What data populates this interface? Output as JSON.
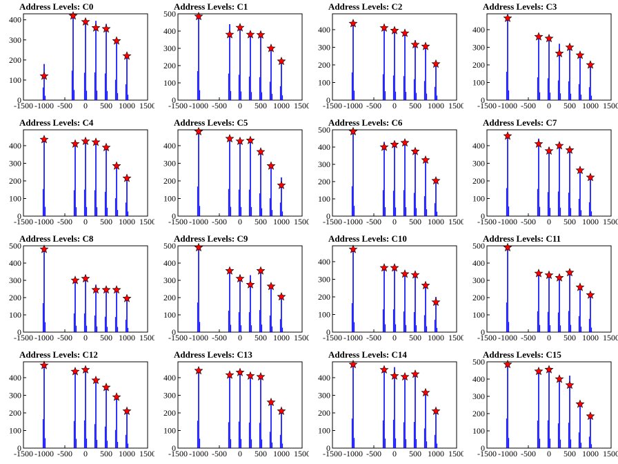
{
  "title_prefix": "Address Levels: ",
  "colors": {
    "histogram": "#0000ff",
    "marker": "#ff0000",
    "marker_edge": "#000000"
  },
  "marker_icon": "star-icon",
  "chart_data": [
    {
      "type": "bar",
      "title": "Address Levels: C0",
      "xlim": [
        -1500,
        1500
      ],
      "xticks": [
        -1500,
        -1000,
        -500,
        0,
        500,
        1000,
        1500
      ],
      "ylim": [
        0,
        430
      ],
      "yticks": [
        0,
        100,
        200,
        300,
        400
      ],
      "peak_x": [
        -1000,
        -300,
        0,
        250,
        500,
        750,
        1000
      ],
      "peak_heights": [
        180,
        420,
        390,
        395,
        380,
        290,
        225
      ],
      "markers_y": [
        120,
        420,
        390,
        360,
        355,
        295,
        220
      ]
    },
    {
      "type": "bar",
      "title": "Address Levels: C1",
      "xlim": [
        -1500,
        1500
      ],
      "xticks": [
        -1500,
        -1000,
        -500,
        0,
        500,
        1000,
        1500
      ],
      "ylim": [
        0,
        500
      ],
      "yticks": [
        0,
        100,
        200,
        300,
        400,
        500
      ],
      "peak_x": [
        -1000,
        -250,
        0,
        250,
        500,
        750,
        1000
      ],
      "peak_heights": [
        480,
        440,
        420,
        390,
        380,
        305,
        230
      ],
      "markers_y": [
        485,
        380,
        420,
        380,
        378,
        300,
        225
      ]
    },
    {
      "type": "bar",
      "title": "Address Levels: C2",
      "xlim": [
        -1500,
        1500
      ],
      "xticks": [
        -1500,
        -1000,
        -500,
        0,
        500,
        1000,
        1500
      ],
      "ylim": [
        0,
        490
      ],
      "yticks": [
        0,
        100,
        200,
        300,
        400
      ],
      "peak_x": [
        -1000,
        -250,
        0,
        250,
        500,
        750,
        1000
      ],
      "peak_heights": [
        450,
        420,
        400,
        390,
        340,
        310,
        215
      ],
      "markers_y": [
        435,
        410,
        395,
        380,
        315,
        305,
        205
      ]
    },
    {
      "type": "bar",
      "title": "Address Levels: C3",
      "xlim": [
        -1500,
        1500
      ],
      "xticks": [
        -1500,
        -1000,
        -500,
        0,
        500,
        1000,
        1500
      ],
      "ylim": [
        0,
        490
      ],
      "yticks": [
        0,
        100,
        200,
        300,
        400
      ],
      "peak_x": [
        -1000,
        -250,
        0,
        250,
        500,
        750,
        1000
      ],
      "peak_heights": [
        460,
        370,
        355,
        320,
        305,
        260,
        210
      ],
      "markers_y": [
        465,
        360,
        350,
        265,
        300,
        255,
        200
      ]
    },
    {
      "type": "bar",
      "title": "Address Levels: C4",
      "xlim": [
        -1500,
        1500
      ],
      "xticks": [
        -1500,
        -1000,
        -500,
        0,
        500,
        1000,
        1500
      ],
      "ylim": [
        0,
        490
      ],
      "yticks": [
        0,
        100,
        200,
        300,
        400
      ],
      "peak_x": [
        -1000,
        -250,
        0,
        250,
        500,
        750,
        1000
      ],
      "peak_heights": [
        440,
        420,
        430,
        420,
        395,
        290,
        220
      ],
      "markers_y": [
        435,
        410,
        425,
        420,
        390,
        285,
        215
      ]
    },
    {
      "type": "bar",
      "title": "Address Levels: C5",
      "xlim": [
        -1500,
        1500
      ],
      "xticks": [
        -1500,
        -1000,
        -500,
        0,
        500,
        1000,
        1500
      ],
      "ylim": [
        0,
        490
      ],
      "yticks": [
        0,
        100,
        200,
        300,
        400
      ],
      "peak_x": [
        -1000,
        -250,
        0,
        250,
        500,
        750,
        1000
      ],
      "peak_heights": [
        480,
        440,
        430,
        430,
        370,
        290,
        220
      ],
      "markers_y": [
        480,
        440,
        425,
        430,
        365,
        285,
        175
      ]
    },
    {
      "type": "bar",
      "title": "Address Levels: C6",
      "xlim": [
        -1500,
        1500
      ],
      "xticks": [
        -1500,
        -1000,
        -500,
        0,
        500,
        1000,
        1500
      ],
      "ylim": [
        0,
        500
      ],
      "yticks": [
        0,
        100,
        200,
        300,
        400,
        500
      ],
      "peak_x": [
        -1000,
        -250,
        0,
        250,
        500,
        750,
        1000
      ],
      "peak_heights": [
        495,
        430,
        420,
        430,
        385,
        330,
        215
      ],
      "markers_y": [
        490,
        400,
        415,
        425,
        375,
        325,
        205
      ]
    },
    {
      "type": "bar",
      "title": "Address Levels: C7",
      "xlim": [
        -1500,
        1500
      ],
      "xticks": [
        -1500,
        -1000,
        -500,
        0,
        500,
        1000,
        1500
      ],
      "ylim": [
        0,
        490
      ],
      "yticks": [
        0,
        100,
        200,
        300,
        400
      ],
      "peak_x": [
        -1000,
        -250,
        0,
        250,
        500,
        750,
        1000
      ],
      "peak_heights": [
        455,
        440,
        390,
        400,
        380,
        280,
        225
      ],
      "markers_y": [
        455,
        410,
        370,
        400,
        375,
        260,
        220
      ]
    },
    {
      "type": "bar",
      "title": "Address Levels: C8",
      "xlim": [
        -1500,
        1500
      ],
      "xticks": [
        -1500,
        -1000,
        -500,
        0,
        500,
        1000,
        1500
      ],
      "ylim": [
        0,
        500
      ],
      "yticks": [
        0,
        100,
        200,
        300,
        400,
        500
      ],
      "peak_x": [
        -1000,
        -250,
        0,
        250,
        500,
        750,
        1000
      ],
      "peak_heights": [
        480,
        310,
        310,
        275,
        255,
        250,
        205
      ],
      "markers_y": [
        480,
        300,
        310,
        245,
        245,
        245,
        195
      ]
    },
    {
      "type": "bar",
      "title": "Address Levels: C9",
      "xlim": [
        -1500,
        1500
      ],
      "xticks": [
        -1500,
        -1000,
        -500,
        0,
        500,
        1000,
        1500
      ],
      "ylim": [
        0,
        500
      ],
      "yticks": [
        0,
        100,
        200,
        300,
        400,
        500
      ],
      "peak_x": [
        -1000,
        -250,
        0,
        250,
        500,
        750,
        1000
      ],
      "peak_heights": [
        490,
        355,
        330,
        330,
        365,
        275,
        215
      ],
      "markers_y": [
        490,
        355,
        310,
        275,
        355,
        265,
        205
      ]
    },
    {
      "type": "bar",
      "title": "Address Levels: C10",
      "xlim": [
        -1500,
        1500
      ],
      "xticks": [
        -1500,
        -1000,
        -500,
        0,
        500,
        1000,
        1500
      ],
      "ylim": [
        0,
        490
      ],
      "yticks": [
        0,
        100,
        200,
        300,
        400
      ],
      "peak_x": [
        -1000,
        -250,
        0,
        250,
        500,
        750,
        1000
      ],
      "peak_heights": [
        470,
        370,
        370,
        335,
        325,
        275,
        200
      ],
      "markers_y": [
        470,
        365,
        365,
        330,
        325,
        265,
        170
      ]
    },
    {
      "type": "bar",
      "title": "Address Levels: C11",
      "xlim": [
        -1500,
        1500
      ],
      "xticks": [
        -1500,
        -1000,
        -500,
        0,
        500,
        1000,
        1500
      ],
      "ylim": [
        0,
        500
      ],
      "yticks": [
        0,
        100,
        200,
        300,
        400,
        500
      ],
      "peak_x": [
        -1000,
        -250,
        0,
        250,
        500,
        750,
        1000
      ],
      "peak_heights": [
        490,
        345,
        335,
        325,
        350,
        265,
        220
      ],
      "markers_y": [
        490,
        340,
        330,
        315,
        345,
        260,
        215
      ]
    },
    {
      "type": "bar",
      "title": "Address Levels: C12",
      "xlim": [
        -1500,
        1500
      ],
      "xticks": [
        -1500,
        -1000,
        -500,
        0,
        500,
        1000,
        1500
      ],
      "ylim": [
        0,
        490
      ],
      "yticks": [
        0,
        100,
        200,
        300,
        400
      ],
      "peak_x": [
        -1000,
        -250,
        0,
        250,
        500,
        750,
        1000
      ],
      "peak_heights": [
        470,
        440,
        450,
        390,
        350,
        295,
        215
      ],
      "markers_y": [
        470,
        435,
        445,
        385,
        345,
        290,
        210
      ]
    },
    {
      "type": "bar",
      "title": "Address Levels: C13",
      "xlim": [
        -1500,
        1500
      ],
      "xticks": [
        -1500,
        -1000,
        -500,
        0,
        500,
        1000,
        1500
      ],
      "ylim": [
        0,
        490
      ],
      "yticks": [
        0,
        100,
        200,
        300,
        400
      ],
      "peak_x": [
        -1000,
        -250,
        0,
        250,
        500,
        750,
        1000
      ],
      "peak_heights": [
        445,
        420,
        430,
        415,
        410,
        265,
        215
      ],
      "markers_y": [
        440,
        415,
        430,
        410,
        405,
        260,
        210
      ]
    },
    {
      "type": "bar",
      "title": "Address Levels: C14",
      "xlim": [
        -1500,
        1500
      ],
      "xticks": [
        -1500,
        -1000,
        -500,
        0,
        500,
        1000,
        1500
      ],
      "ylim": [
        0,
        490
      ],
      "yticks": [
        0,
        100,
        200,
        300,
        400
      ],
      "peak_x": [
        -1000,
        -250,
        0,
        250,
        500,
        750,
        1000
      ],
      "peak_heights": [
        480,
        450,
        460,
        420,
        425,
        320,
        215
      ],
      "markers_y": [
        475,
        445,
        410,
        405,
        420,
        315,
        210
      ]
    },
    {
      "type": "bar",
      "title": "Address Levels: C15",
      "xlim": [
        -1500,
        1500
      ],
      "xticks": [
        -1500,
        -1000,
        -500,
        0,
        500,
        1000,
        1500
      ],
      "ylim": [
        0,
        500
      ],
      "yticks": [
        0,
        100,
        200,
        300,
        400,
        500
      ],
      "peak_x": [
        -1000,
        -250,
        0,
        250,
        500,
        750,
        1000
      ],
      "peak_heights": [
        490,
        455,
        460,
        410,
        420,
        260,
        190
      ],
      "markers_y": [
        485,
        445,
        455,
        400,
        365,
        255,
        185
      ]
    }
  ]
}
